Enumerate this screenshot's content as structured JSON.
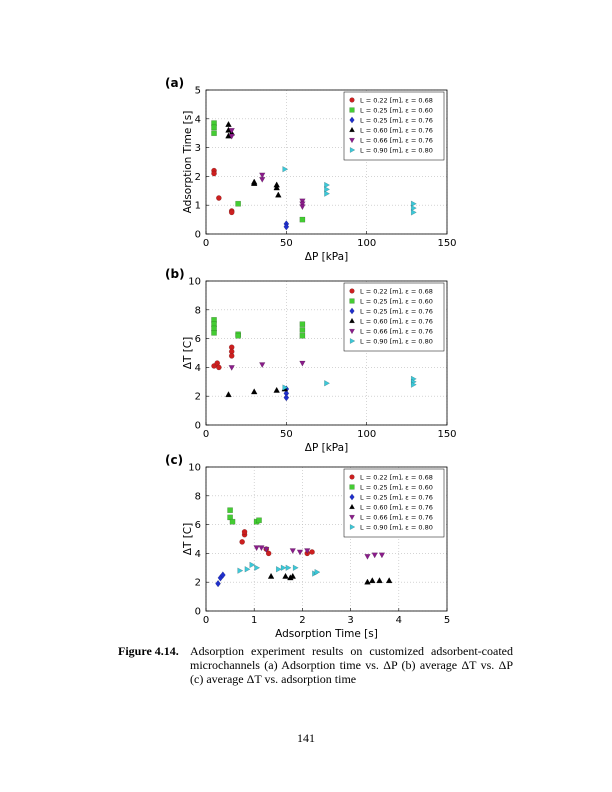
{
  "chart_data": [
    {
      "type": "scatter",
      "label": "(a)",
      "xlabel": "ΔP [kPa]",
      "ylabel": "Adsorption Time [s]",
      "xlim": [
        0,
        150
      ],
      "xticks": [
        0,
        50,
        100,
        150
      ],
      "ylim": [
        0,
        5
      ],
      "yticks": [
        0,
        1,
        2,
        3,
        4,
        5
      ],
      "grid": true,
      "legend": "upper right",
      "series": [
        {
          "name": "L = 0.22 [m],   ε = 0.68",
          "color": "#cc1f1f",
          "marker": "circle",
          "x": [
            5,
            5,
            8,
            16,
            16
          ],
          "values": [
            2.2,
            2.1,
            1.25,
            0.8,
            0.75
          ]
        },
        {
          "name": "L = 0.25 [m],   ε = 0.60",
          "color": "#44cc33",
          "marker": "square",
          "x": [
            5,
            5,
            5,
            20,
            60
          ],
          "values": [
            3.85,
            3.7,
            3.5,
            1.05,
            0.5
          ]
        },
        {
          "name": "L = 0.25 [m],   ε = 0.76",
          "color": "#1f2fcc",
          "marker": "diamond",
          "x": [
            50,
            50
          ],
          "values": [
            0.35,
            0.25
          ]
        },
        {
          "name": "L = 0.60 [m],   ε = 0.76",
          "color": "#000000",
          "marker": "triangle-up",
          "x": [
            14,
            14,
            14,
            16,
            30,
            30,
            44,
            44,
            45
          ],
          "values": [
            3.8,
            3.6,
            3.4,
            3.5,
            1.8,
            1.75,
            1.7,
            1.6,
            1.35
          ]
        },
        {
          "name": "L = 0.66 [m],   ε = 0.76",
          "color": "#8a1c8a",
          "marker": "triangle-down",
          "x": [
            16,
            16,
            35,
            35,
            60,
            60,
            60
          ],
          "values": [
            3.6,
            3.4,
            2.05,
            1.9,
            1.15,
            1.05,
            0.95
          ]
        },
        {
          "name": "L = 0.90 [m],   ε = 0.80",
          "color": "#3cc8d8",
          "marker": "triangle-right",
          "x": [
            49,
            75,
            75,
            75,
            129,
            129,
            129
          ],
          "values": [
            2.25,
            1.7,
            1.55,
            1.4,
            1.05,
            0.9,
            0.75
          ]
        }
      ]
    },
    {
      "type": "scatter",
      "label": "(b)",
      "xlabel": "ΔP [kPa]",
      "ylabel": "ΔT [C]",
      "xlim": [
        0,
        150
      ],
      "xticks": [
        0,
        50,
        100,
        150
      ],
      "ylim": [
        0,
        10
      ],
      "yticks": [
        0,
        2,
        4,
        6,
        8,
        10
      ],
      "grid": true,
      "legend": "upper right",
      "series": [
        {
          "name": "L = 0.22 [m],   ε = 0.68",
          "color": "#cc1f1f",
          "marker": "circle",
          "x": [
            5,
            7,
            8,
            16,
            16,
            16
          ],
          "values": [
            4.1,
            4.3,
            4.0,
            5.4,
            5.1,
            4.8
          ]
        },
        {
          "name": "L = 0.25 [m],   ε = 0.60",
          "color": "#44cc33",
          "marker": "square",
          "x": [
            5,
            5,
            5,
            5,
            20,
            20,
            60,
            60,
            60
          ],
          "values": [
            7.3,
            7.0,
            6.7,
            6.4,
            6.3,
            6.2,
            7.0,
            6.6,
            6.2
          ]
        },
        {
          "name": "L = 0.25 [m],   ε = 0.76",
          "color": "#1f2fcc",
          "marker": "diamond",
          "x": [
            50,
            50,
            50
          ],
          "values": [
            2.5,
            2.2,
            1.9
          ]
        },
        {
          "name": "L = 0.60 [m],   ε = 0.76",
          "color": "#000000",
          "marker": "triangle-up",
          "x": [
            14,
            30,
            44,
            49
          ],
          "values": [
            2.1,
            2.3,
            2.4,
            2.5
          ]
        },
        {
          "name": "L = 0.66 [m],   ε = 0.76",
          "color": "#8a1c8a",
          "marker": "triangle-down",
          "x": [
            16,
            35,
            60
          ],
          "values": [
            4.0,
            4.2,
            4.3
          ]
        },
        {
          "name": "L = 0.90 [m],   ε = 0.80",
          "color": "#3cc8d8",
          "marker": "triangle-right",
          "x": [
            49,
            75,
            129,
            129,
            129
          ],
          "values": [
            2.6,
            2.9,
            3.2,
            3.0,
            2.8
          ]
        }
      ]
    },
    {
      "type": "scatter",
      "label": "(c)",
      "xlabel": "Adsorption Time [s]",
      "ylabel": "ΔT [C]",
      "xlim": [
        0,
        5
      ],
      "xticks": [
        0,
        1,
        2,
        3,
        4,
        5
      ],
      "ylim": [
        0,
        10
      ],
      "yticks": [
        0,
        2,
        4,
        6,
        8,
        10
      ],
      "grid": true,
      "legend": "upper right",
      "series": [
        {
          "name": "L = 0.22 [m],   ε = 0.68",
          "color": "#cc1f1f",
          "marker": "circle",
          "x": [
            0.75,
            0.8,
            0.8,
            1.25,
            1.3,
            2.1,
            2.2
          ],
          "values": [
            4.8,
            5.3,
            5.5,
            4.3,
            4.0,
            4.0,
            4.1
          ]
        },
        {
          "name": "L = 0.25 [m],   ε = 0.60",
          "color": "#44cc33",
          "marker": "square",
          "x": [
            0.5,
            0.5,
            0.55,
            1.05,
            1.1
          ],
          "values": [
            7.0,
            6.5,
            6.2,
            6.2,
            6.3
          ]
        },
        {
          "name": "L = 0.25 [m],   ε = 0.76",
          "color": "#1f2fcc",
          "marker": "diamond",
          "x": [
            0.25,
            0.3,
            0.35
          ],
          "values": [
            1.9,
            2.3,
            2.5
          ]
        },
        {
          "name": "L = 0.60 [m],   ε = 0.76",
          "color": "#000000",
          "marker": "triangle-up",
          "x": [
            1.35,
            1.65,
            1.75,
            1.8,
            3.35,
            3.45,
            3.6,
            3.8
          ],
          "values": [
            2.4,
            2.4,
            2.3,
            2.4,
            2.0,
            2.1,
            2.1,
            2.1
          ]
        },
        {
          "name": "L = 0.66 [m],   ε = 0.76",
          "color": "#8a1c8a",
          "marker": "triangle-down",
          "x": [
            1.05,
            1.15,
            1.25,
            1.8,
            1.95,
            2.1,
            3.35,
            3.5,
            3.65
          ],
          "values": [
            4.4,
            4.4,
            4.3,
            4.2,
            4.1,
            4.2,
            3.8,
            3.9,
            3.9
          ]
        },
        {
          "name": "L = 0.90 [m],   ε = 0.80",
          "color": "#3cc8d8",
          "marker": "triangle-right",
          "x": [
            0.7,
            0.85,
            0.95,
            1.05,
            1.5,
            1.6,
            1.7,
            1.85,
            2.25,
            2.3
          ],
          "values": [
            2.8,
            2.9,
            3.2,
            3.0,
            2.9,
            3.0,
            3.0,
            3.0,
            2.6,
            2.7
          ]
        }
      ]
    }
  ],
  "caption": {
    "label": "Figure 4.14.",
    "text": "Adsorption experiment results on customized adsorbent-coated microchannels (a) Adsorption time vs. ΔP (b) average ΔT vs. ΔP (c) average ΔT vs. adsorption time"
  },
  "page_number": "141"
}
